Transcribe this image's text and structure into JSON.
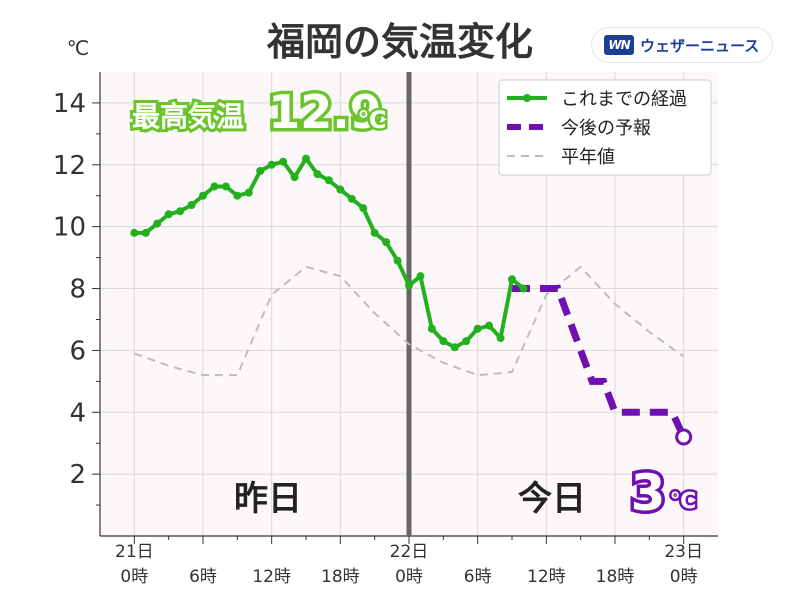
{
  "chart_data": {
    "type": "line",
    "title": "福岡の気温変化",
    "y_unit": "℃",
    "ylim": [
      0,
      15
    ],
    "yticks": [
      2,
      4,
      6,
      8,
      10,
      12,
      14
    ],
    "grid": true,
    "legend_position": "top-right",
    "x_range_hours": [
      -3,
      51
    ],
    "x_ticks": [
      {
        "h": 0,
        "top": "21日",
        "bottom": "0時"
      },
      {
        "h": 6,
        "top": "",
        "bottom": "6時"
      },
      {
        "h": 12,
        "top": "",
        "bottom": "12時"
      },
      {
        "h": 18,
        "top": "",
        "bottom": "18時"
      },
      {
        "h": 24,
        "top": "22日",
        "bottom": "0時"
      },
      {
        "h": 30,
        "top": "",
        "bottom": "6時"
      },
      {
        "h": 36,
        "top": "",
        "bottom": "12時"
      },
      {
        "h": 42,
        "top": "",
        "bottom": "18時"
      },
      {
        "h": 48,
        "top": "23日",
        "bottom": "0時"
      }
    ],
    "series": [
      {
        "name": "これまでの経過",
        "color": "#22b01d",
        "style": "solid-markers",
        "x": [
          0,
          1,
          2,
          3,
          4,
          5,
          6,
          7,
          8,
          9,
          10,
          11,
          12,
          13,
          14,
          15,
          16,
          17,
          18,
          19,
          20,
          21,
          22,
          23,
          24,
          25,
          26,
          27,
          28,
          29,
          30,
          31,
          32,
          33,
          34
        ],
        "y": [
          9.8,
          9.8,
          10.1,
          10.4,
          10.5,
          10.7,
          11.0,
          11.3,
          11.3,
          11.0,
          11.1,
          11.8,
          12.0,
          12.1,
          11.6,
          12.2,
          11.7,
          11.5,
          11.2,
          10.9,
          10.6,
          9.8,
          9.5,
          8.9,
          8.1,
          8.4,
          6.7,
          6.3,
          6.1,
          6.3,
          6.7,
          6.8,
          6.4,
          8.3,
          8.0
        ]
      },
      {
        "name": "今後の予報",
        "color": "#7010b0",
        "style": "dashed",
        "x": [
          33,
          34,
          35,
          36,
          37,
          38,
          39,
          40,
          41,
          42,
          43,
          44,
          45,
          46,
          47,
          48
        ],
        "y": [
          8.0,
          8.0,
          8.0,
          8.0,
          8.0,
          7.0,
          6.0,
          5.0,
          5.0,
          4.0,
          4.0,
          4.0,
          4.0,
          4.0,
          4.0,
          3.2
        ]
      },
      {
        "name": "平年値",
        "color": "#bdbdbd",
        "style": "thin-dashed",
        "x": [
          0,
          3,
          6,
          9,
          12,
          15,
          18,
          21,
          24,
          27,
          30,
          33,
          36,
          39,
          42,
          45,
          48
        ],
        "y": [
          5.9,
          5.5,
          5.2,
          5.2,
          7.8,
          8.7,
          8.4,
          7.2,
          6.2,
          5.6,
          5.2,
          5.3,
          7.8,
          8.7,
          7.5,
          6.6,
          5.8
        ]
      }
    ],
    "annotations": {
      "max_label": "最高気温",
      "max_value": "12.9",
      "max_unit": "℃",
      "max_color": "#6ac42a",
      "day1_label": "昨日",
      "day2_label": "今日",
      "forecast_value": "3",
      "forecast_unit": "℃",
      "forecast_color": "#7010b0"
    }
  },
  "logo": {
    "mark": "WN",
    "text": "ウェザーニュース",
    "color": "#1c3f94"
  }
}
